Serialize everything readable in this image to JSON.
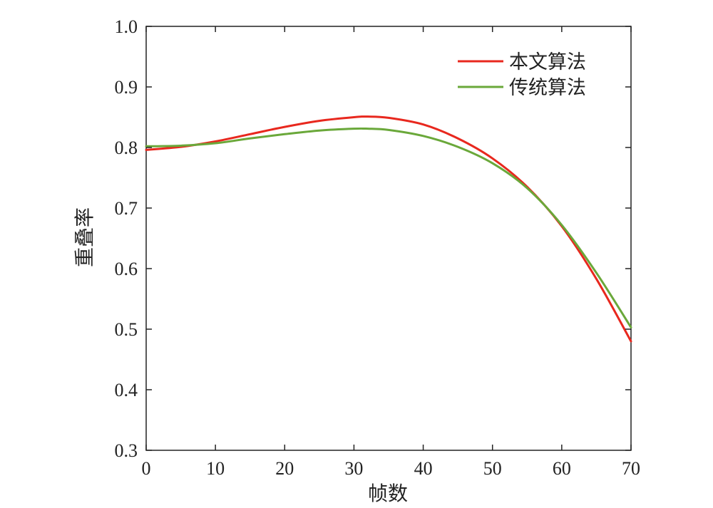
{
  "chart_data": {
    "type": "line",
    "xlabel": "帧数",
    "ylabel": "重叠率",
    "xlim": [
      0,
      70
    ],
    "ylim": [
      0.3,
      1.0
    ],
    "x_ticks": [
      "0",
      "10",
      "20",
      "30",
      "40",
      "50",
      "60",
      "70"
    ],
    "y_ticks": [
      "0.3",
      "0.4",
      "0.5",
      "0.6",
      "0.7",
      "0.8",
      "0.9",
      "1.0"
    ],
    "grid": false,
    "legend_position": "top-right",
    "x": [
      0,
      5,
      10,
      15,
      20,
      25,
      30,
      32,
      35,
      40,
      45,
      50,
      55,
      60,
      65,
      70
    ],
    "series": [
      {
        "name": "本文算法",
        "color": "#e8281e",
        "values": [
          0.796,
          0.801,
          0.81,
          0.822,
          0.834,
          0.844,
          0.85,
          0.851,
          0.849,
          0.838,
          0.815,
          0.782,
          0.735,
          0.67,
          0.583,
          0.48
        ]
      },
      {
        "name": "传统算法",
        "color": "#6aa83a",
        "values": [
          0.802,
          0.803,
          0.807,
          0.815,
          0.822,
          0.828,
          0.831,
          0.831,
          0.829,
          0.819,
          0.801,
          0.774,
          0.733,
          0.672,
          0.593,
          0.503
        ]
      }
    ]
  }
}
